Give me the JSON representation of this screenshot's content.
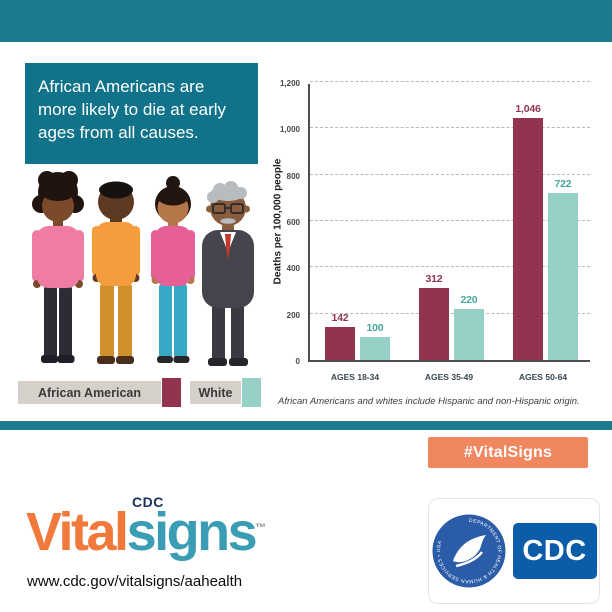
{
  "headline": {
    "text": "African Americans are more likely to die at early ages from all causes."
  },
  "legend": {
    "items": [
      {
        "label": "African American",
        "color": "#92344D"
      },
      {
        "label": "White",
        "color": "#96D0C7"
      }
    ]
  },
  "chart_data": {
    "type": "bar",
    "title": "",
    "ylabel": "Deaths per 100,000 people",
    "xlabel": "",
    "categories": [
      "AGES 18-34",
      "AGES 35-49",
      "AGES 50-64"
    ],
    "series": [
      {
        "name": "African American",
        "color": "#92344D",
        "label_color": "#92344D",
        "values": [
          142,
          312,
          1046
        ],
        "labels": [
          "142",
          "312",
          "1,046"
        ]
      },
      {
        "name": "White",
        "color": "#96D0C7",
        "label_color": "#46A79F",
        "values": [
          100,
          220,
          722
        ],
        "labels": [
          "100",
          "220",
          "722"
        ]
      }
    ],
    "ylim": [
      0,
      1200
    ],
    "yticks": [
      "0",
      "200",
      "400",
      "600",
      "800",
      "1,000",
      "1,200"
    ],
    "grid": true,
    "legend_position": "bottom-left",
    "footnote": "African Americans and whites include Hispanic and non-Hispanic origin."
  },
  "badge": {
    "text": "#VitalSigns"
  },
  "footer": {
    "logo": {
      "cdc": "CDC",
      "vital": "Vital",
      "signs": "signs",
      "tm": "™"
    },
    "url": "www.cdc.gov/vitalsigns/aahealth",
    "cdc_box": "CDC",
    "hhs_seal_text": "DEPARTMENT OF HEALTH & HUMAN SERVICES • USA"
  },
  "colors": {
    "header_teal": "#1E7A8D",
    "headline_box_teal": "#10738A",
    "maroon": "#92344D",
    "bar_teal": "#96D0C7",
    "badge_orange": "#F0875F",
    "legend_gray": "#D5D1CA",
    "logo_orange": "#F1793B",
    "logo_teal": "#3B9DB3",
    "cdc_blue": "#0B5CA9",
    "hhs_blue": "#2A5CA8"
  }
}
